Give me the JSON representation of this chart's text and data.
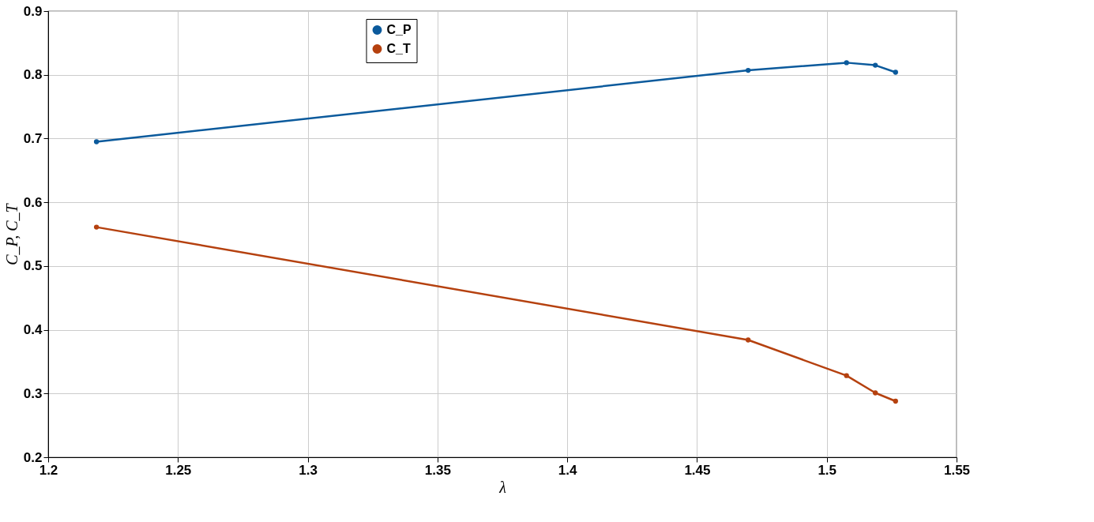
{
  "chart_data": {
    "type": "line",
    "xlabel": "λ",
    "ylabel": "C_P, C_T",
    "x": [
      1.2186,
      1.4697,
      1.5076,
      1.5187,
      1.5265
    ],
    "series": [
      {
        "name": "C_P",
        "color": "#0b5a9c",
        "values": [
          0.695,
          0.807,
          0.819,
          0.815,
          0.804
        ]
      },
      {
        "name": "C_T",
        "color": "#b5410f",
        "values": [
          0.561,
          0.384,
          0.328,
          0.301,
          0.288
        ]
      }
    ],
    "xlim": [
      1.2,
      1.55
    ],
    "xticks": [
      1.2,
      1.25,
      1.3,
      1.35,
      1.4,
      1.45,
      1.5,
      1.55
    ],
    "ylim": [
      0.2,
      0.9
    ],
    "yticks": [
      0.2,
      0.3,
      0.4,
      0.5,
      0.6,
      0.7,
      0.8,
      0.9
    ],
    "grid": true,
    "legend": "top",
    "marker": "circle",
    "line_style": "solid"
  }
}
